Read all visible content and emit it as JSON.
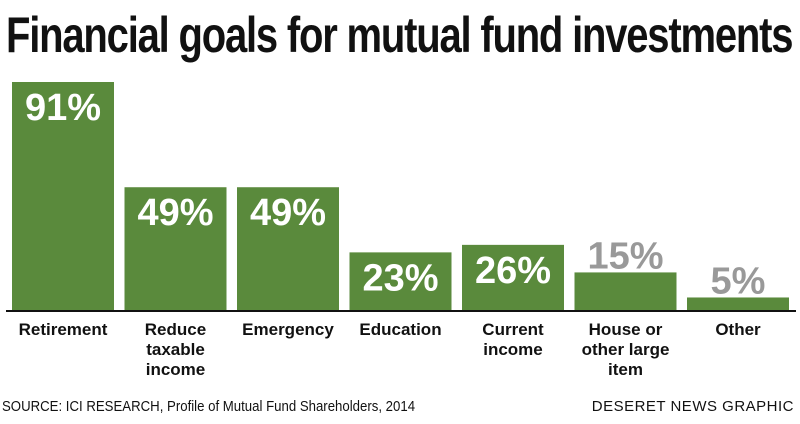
{
  "header": {
    "title": "Financial goals for mutual fund investments"
  },
  "footer": {
    "source": "SOURCE: ICI RESEARCH, Profile of Mutual Fund Shareholders, 2014",
    "credit": "DESERET NEWS GRAPHIC"
  },
  "colors": {
    "bar": "#5a8a3c",
    "value_text": "#ffffff",
    "value_text_outside": "#999999",
    "baseline": "#111111"
  },
  "chart_data": {
    "type": "bar",
    "title": "Financial goals for mutual fund investments",
    "xlabel": "",
    "ylabel": "",
    "ylim": [
      0,
      100
    ],
    "grid": false,
    "categories": [
      [
        "Retirement"
      ],
      [
        "Reduce",
        "taxable",
        "income"
      ],
      [
        "Emergency"
      ],
      [
        "Education"
      ],
      [
        "Current",
        "income"
      ],
      [
        "House or",
        "other large",
        "item"
      ],
      [
        "Other"
      ]
    ],
    "values": [
      91,
      49,
      49,
      23,
      26,
      15,
      5
    ],
    "value_labels": [
      "91%",
      "49%",
      "49%",
      "23%",
      "26%",
      "15%",
      "5%"
    ]
  }
}
